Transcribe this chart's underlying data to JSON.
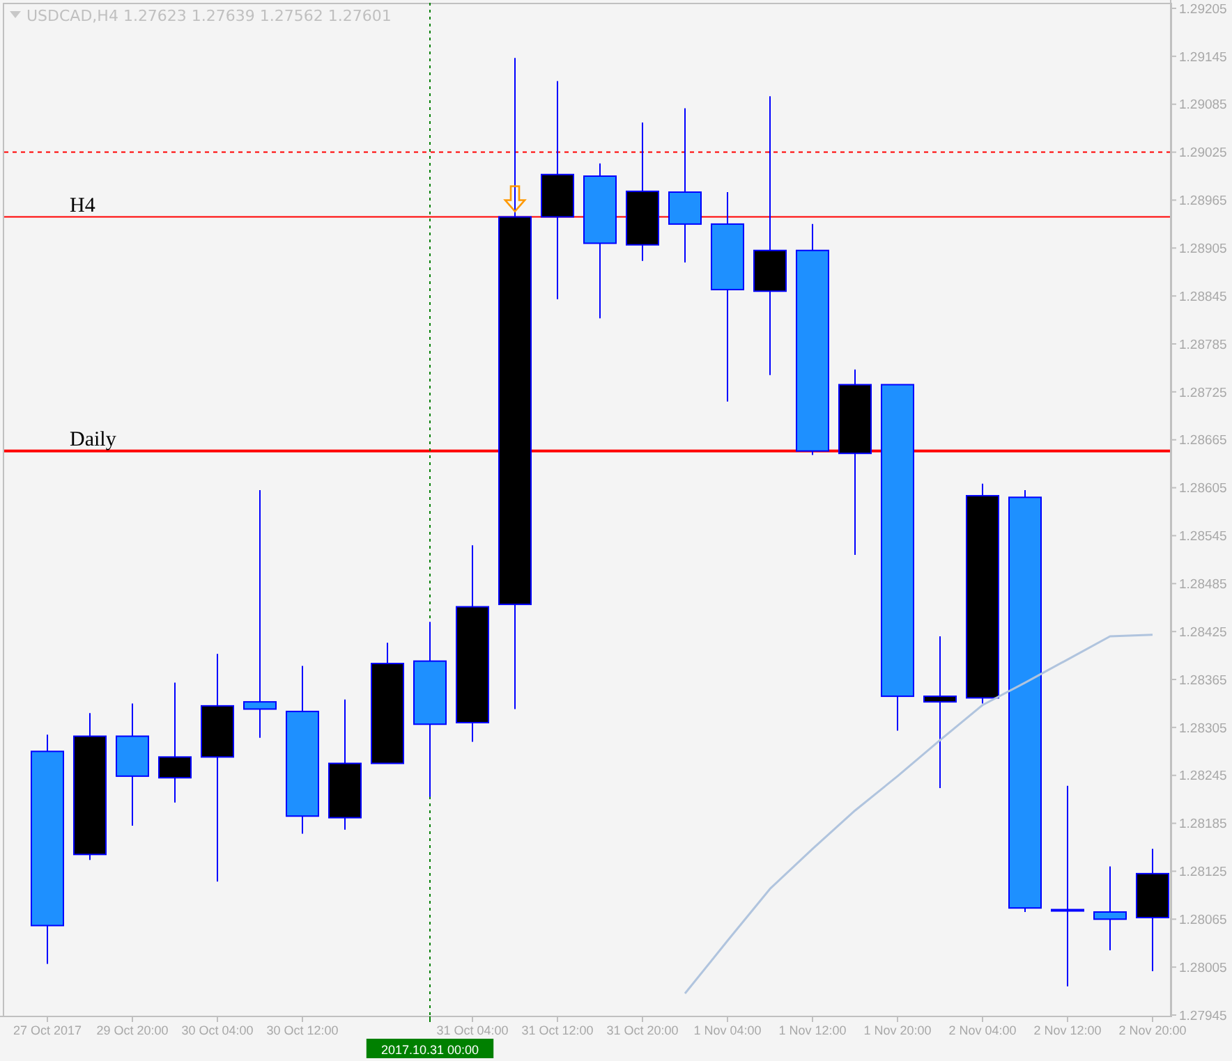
{
  "chart_data": {
    "type": "candlestick",
    "title": "USDCAD,H4  1.27623 1.27639 1.27562 1.27601",
    "categories": [
      "27 Oct 2017",
      null,
      "29 Oct 20:00",
      null,
      "30 Oct 04:00",
      null,
      "30 Oct 12:00",
      null,
      null,
      "2017.10.31 00:00",
      "31 Oct 04:00",
      null,
      "31 Oct 12:00",
      null,
      "31 Oct 20:00",
      null,
      "1 Nov 04:00",
      null,
      "1 Nov 12:00",
      null,
      "1 Nov 20:00",
      null,
      "2 Nov 04:00",
      null,
      "2 Nov 12:00",
      null,
      "2 Nov 20:00"
    ],
    "ohlc": [
      [
        1.28275,
        1.28296,
        1.28009,
        1.28057
      ],
      [
        1.28146,
        1.28323,
        1.28139,
        1.28294
      ],
      [
        1.28294,
        1.28335,
        1.28182,
        1.28244
      ],
      [
        1.28242,
        1.28361,
        1.28211,
        1.28268
      ],
      [
        1.28268,
        1.28397,
        1.28112,
        1.28332
      ],
      [
        1.28337,
        1.28602,
        1.28292,
        1.28328
      ],
      [
        1.28325,
        1.28382,
        1.28172,
        1.28194
      ],
      [
        1.28192,
        1.2834,
        1.28177,
        1.2826
      ],
      [
        1.2826,
        1.28411,
        1.2826,
        1.28385
      ],
      [
        1.28388,
        1.28437,
        1.28218,
        1.28309
      ],
      [
        1.28311,
        1.28533,
        1.28287,
        1.28456
      ],
      [
        1.28459,
        1.29143,
        1.28328,
        1.28944
      ],
      [
        1.28944,
        1.29114,
        1.28841,
        1.28997
      ],
      [
        1.28995,
        1.29011,
        1.28817,
        1.28911
      ],
      [
        1.28909,
        1.29062,
        1.28889,
        1.28976
      ],
      [
        1.28975,
        1.2908,
        1.28887,
        1.28935
      ],
      [
        1.28935,
        1.28975,
        1.28713,
        1.28853
      ],
      [
        1.28851,
        1.29095,
        1.28746,
        1.28902
      ],
      [
        1.28902,
        1.28935,
        1.28646,
        1.28651
      ],
      [
        1.28648,
        1.28753,
        1.28521,
        1.28734
      ],
      [
        1.28734,
        1.28734,
        1.28301,
        1.28344
      ],
      [
        1.28337,
        1.28419,
        1.28229,
        1.28344
      ],
      [
        1.28342,
        1.2861,
        1.28335,
        1.28595
      ],
      [
        1.28593,
        1.28602,
        1.28074,
        1.28079
      ],
      [
        1.28077,
        1.28232,
        1.27981,
        1.28077
      ],
      [
        1.28074,
        1.28131,
        1.28026,
        1.28065
      ],
      [
        1.28067,
        1.28153,
        1.28,
        1.28122
      ]
    ],
    "colors": [
      "#1e90ff",
      "#000000",
      "#1e90ff",
      "#000000",
      "#000000",
      "#1e90ff",
      "#1e90ff",
      "#000000",
      "#000000",
      "#1e90ff",
      "#000000",
      "#000000",
      "#000000",
      "#1e90ff",
      "#000000",
      "#1e90ff",
      "#1e90ff",
      "#000000",
      "#1e90ff",
      "#000000",
      "#1e90ff",
      "#000000",
      "#000000",
      "#1e90ff",
      "#1e90ff",
      "#1e90ff",
      "#000000"
    ],
    "series": [
      {
        "type": "line",
        "color": "#b0c4de",
        "values": [
          null,
          null,
          null,
          null,
          null,
          null,
          null,
          null,
          null,
          null,
          null,
          null,
          null,
          null,
          null,
          1.27972,
          1.28038,
          1.28103,
          1.28153,
          1.28201,
          1.28244,
          1.28289,
          1.28333,
          1.28361,
          1.2839,
          1.28419,
          1.28421
        ]
      }
    ],
    "ylim": [
      1.27945,
      1.29205
    ],
    "yticks": [
      1.27945,
      1.28005,
      1.28065,
      1.28125,
      1.28185,
      1.28245,
      1.28305,
      1.28365,
      1.28425,
      1.28485,
      1.28545,
      1.28605,
      1.28665,
      1.28725,
      1.28785,
      1.28845,
      1.28905,
      1.28965,
      1.29025,
      1.29085,
      1.29145,
      1.29205
    ],
    "ref_lines": [
      {
        "axis": "y",
        "value": 1.28651,
        "label": "Daily",
        "color": "#ff0000",
        "line_style": "solid"
      },
      {
        "axis": "y",
        "value": 1.28944,
        "label": "H4",
        "color": "#ff0000",
        "line_style": "solid"
      },
      {
        "axis": "y",
        "value": 1.29025,
        "color": "#ff0000",
        "line_style": "dashed"
      },
      {
        "axis": "x",
        "value": "2017.10.31 00:00",
        "color": "#008000",
        "line_style": "dotted"
      }
    ],
    "grid": false
  }
}
